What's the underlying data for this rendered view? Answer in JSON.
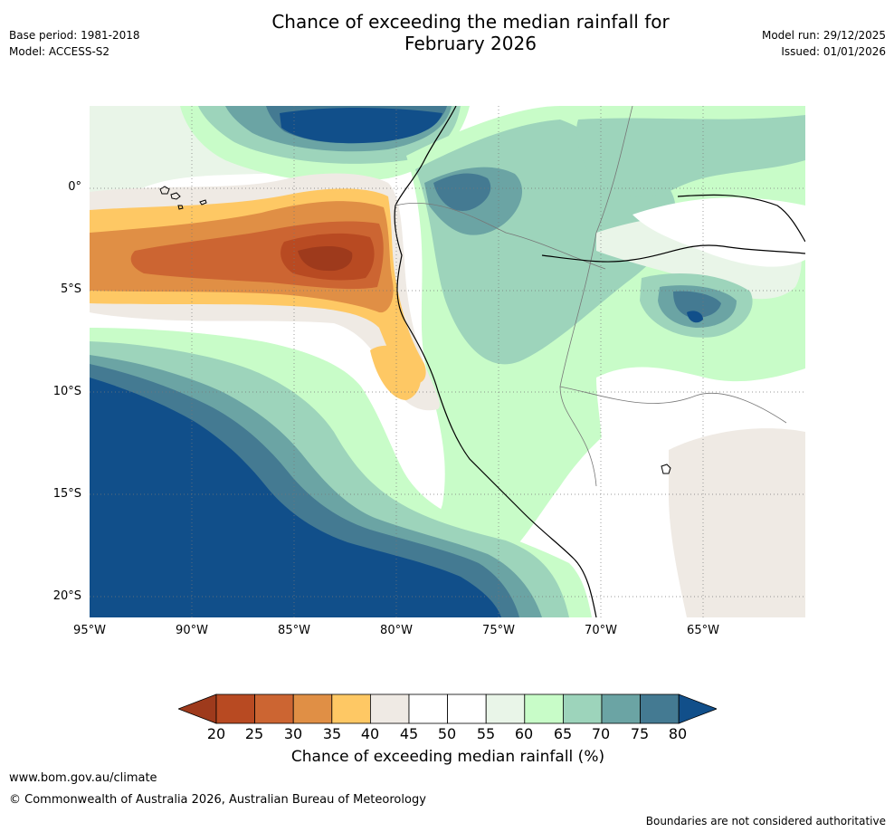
{
  "header": {
    "title_line1": "Chance of exceeding the median rainfall for",
    "title_line2": "February 2026",
    "base_period": "Base period: 1981-2018",
    "model": "Model: ACCESS-S2",
    "model_run": "Model run: 29/12/2025",
    "issued": "Issued: 01/01/2026"
  },
  "map": {
    "lat_labels": [
      "0°",
      "5°S",
      "10°S",
      "15°S",
      "20°S"
    ],
    "lon_labels": [
      "95°W",
      "90°W",
      "85°W",
      "80°W",
      "75°W",
      "70°W",
      "65°W"
    ]
  },
  "colorbar": {
    "ticks": [
      "20",
      "25",
      "30",
      "35",
      "40",
      "45",
      "50",
      "55",
      "60",
      "65",
      "70",
      "75",
      "80"
    ],
    "colors": [
      "#9e3a1c",
      "#b84a22",
      "#cc6532",
      "#e08f45",
      "#fec864",
      "#efeae4",
      "#ffffff",
      "#ffffff",
      "#e9f5e8",
      "#c8fcc8",
      "#9dd4bb",
      "#6ba4a4",
      "#447a92",
      "#114f8a"
    ],
    "label": "Chance of exceeding median rainfall (%)"
  },
  "footer": {
    "website": "www.bom.gov.au/climate",
    "copyright": "© Commonwealth of Australia 2026, Australian Bureau of Meteorology",
    "disclaimer": "Boundaries are not considered authoritative"
  }
}
